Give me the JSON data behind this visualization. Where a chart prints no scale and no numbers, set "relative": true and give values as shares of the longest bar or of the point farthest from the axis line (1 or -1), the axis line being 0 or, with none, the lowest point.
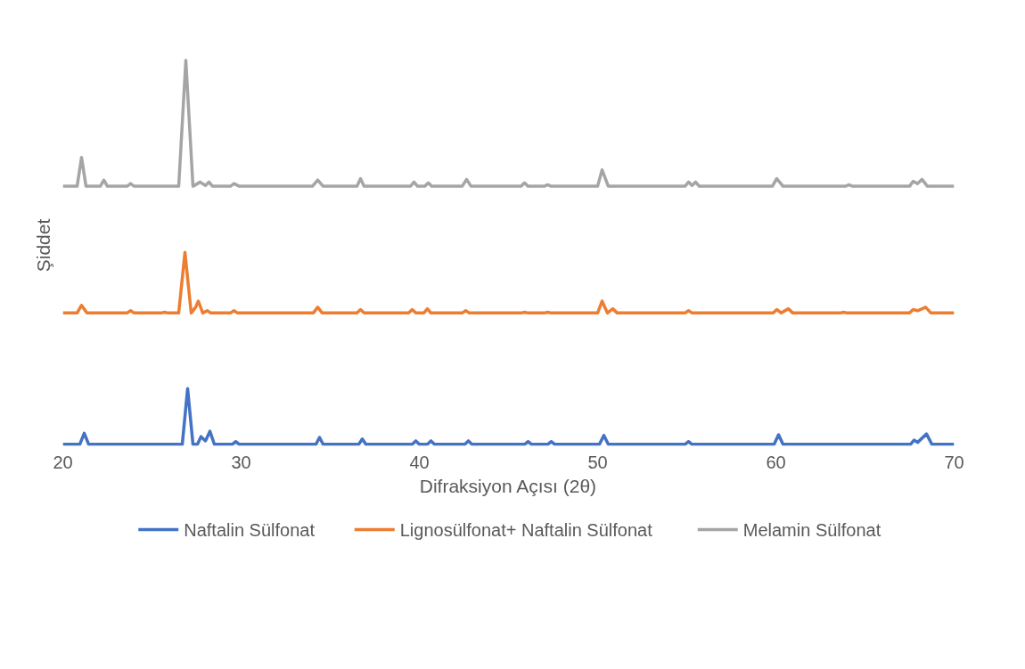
{
  "chart_data": {
    "type": "line",
    "relative": true,
    "xlabel": "Difraksiyon Açısı (2θ)",
    "ylabel": "Şiddet",
    "xlim": [
      20,
      70
    ],
    "xticks": [
      20,
      30,
      40,
      50,
      60,
      70
    ],
    "tick_labels": "x",
    "grid": false,
    "legend": "bottom",
    "marker": "none",
    "line_style": "solid",
    "series": [
      {
        "name": "Naftalin Sülfonat",
        "color": "#4472c4",
        "x": [
          20,
          20.95,
          21.2,
          21.45,
          26.7,
          27.0,
          27.3,
          27.55,
          27.75,
          28.0,
          28.25,
          28.5,
          29.5,
          29.7,
          29.9,
          34.2,
          34.4,
          34.6,
          36.6,
          36.8,
          37.0,
          39.6,
          39.8,
          40.0,
          40.45,
          40.65,
          40.85,
          42.55,
          42.75,
          42.95,
          45.9,
          46.1,
          46.3,
          47.2,
          47.4,
          47.6,
          50.1,
          50.35,
          50.6,
          54.9,
          55.1,
          55.3,
          59.9,
          60.15,
          60.4,
          67.55,
          67.75,
          67.95,
          68.45,
          68.75,
          70
        ],
        "values": [
          0,
          0,
          0.029,
          0,
          0,
          0.145,
          0,
          0,
          0.02,
          0.009,
          0.034,
          0,
          0,
          0.007,
          0,
          0,
          0.018,
          0,
          0,
          0.014,
          0,
          0,
          0.009,
          0,
          0,
          0.009,
          0,
          0,
          0.009,
          0,
          0,
          0.007,
          0,
          0,
          0.007,
          0,
          0,
          0.023,
          0,
          0,
          0.007,
          0,
          0,
          0.025,
          0,
          0,
          0.011,
          0.005,
          0.027,
          0,
          0
        ]
      },
      {
        "name": "Lignosülfonat+ Naftalin Sülfonat",
        "color": "#ed7d31",
        "x": [
          20,
          20.8,
          21.05,
          21.35,
          23.6,
          23.8,
          24.0,
          25.5,
          25.7,
          25.9,
          26.5,
          26.85,
          27.2,
          27.45,
          27.6,
          27.85,
          28.1,
          28.3,
          29.4,
          29.6,
          29.8,
          34.05,
          34.3,
          34.55,
          36.5,
          36.7,
          36.9,
          39.4,
          39.6,
          39.8,
          40.25,
          40.45,
          40.65,
          42.4,
          42.6,
          42.8,
          45.7,
          45.9,
          46.1,
          47.0,
          47.2,
          47.4,
          50.0,
          50.25,
          50.55,
          50.85,
          51.1,
          54.9,
          55.1,
          55.3,
          59.85,
          60.05,
          60.3,
          60.7,
          60.95,
          63.6,
          63.8,
          64.0,
          67.5,
          67.7,
          67.95,
          68.4,
          68.7,
          70
        ],
        "values": [
          0.342,
          0.342,
          0.362,
          0.342,
          0.342,
          0.348,
          0.342,
          0.342,
          0.344,
          0.342,
          0.342,
          0.5,
          0.342,
          0.357,
          0.373,
          0.342,
          0.348,
          0.342,
          0.342,
          0.348,
          0.342,
          0.342,
          0.357,
          0.342,
          0.342,
          0.351,
          0.342,
          0.342,
          0.351,
          0.342,
          0.342,
          0.353,
          0.342,
          0.342,
          0.348,
          0.342,
          0.342,
          0.344,
          0.342,
          0.342,
          0.344,
          0.342,
          0.342,
          0.373,
          0.342,
          0.353,
          0.342,
          0.342,
          0.348,
          0.342,
          0.342,
          0.351,
          0.342,
          0.353,
          0.342,
          0.342,
          0.344,
          0.342,
          0.342,
          0.351,
          0.348,
          0.357,
          0.342,
          0.342
        ]
      },
      {
        "name": "Melamin Sülfonat",
        "color": "#a5a5a5",
        "x": [
          20,
          20.8,
          21.05,
          21.3,
          22.1,
          22.3,
          22.5,
          23.6,
          23.8,
          24.0,
          26.5,
          26.9,
          27.3,
          27.7,
          28.0,
          28.2,
          28.4,
          29.4,
          29.6,
          29.9,
          34.0,
          34.3,
          34.6,
          36.5,
          36.7,
          36.9,
          39.5,
          39.7,
          39.9,
          40.3,
          40.5,
          40.7,
          42.4,
          42.65,
          42.9,
          45.7,
          45.9,
          46.1,
          47.0,
          47.2,
          47.4,
          50.0,
          50.25,
          50.6,
          54.9,
          55.1,
          55.3,
          55.5,
          55.7,
          59.8,
          60.05,
          60.4,
          63.9,
          64.1,
          64.3,
          67.5,
          67.7,
          67.95,
          68.2,
          68.5,
          70
        ],
        "values": [
          0.672,
          0.672,
          0.747,
          0.672,
          0.672,
          0.688,
          0.672,
          0.672,
          0.679,
          0.672,
          0.672,
          1.0,
          0.672,
          0.683,
          0.674,
          0.683,
          0.672,
          0.672,
          0.679,
          0.672,
          0.672,
          0.688,
          0.672,
          0.672,
          0.692,
          0.672,
          0.672,
          0.683,
          0.672,
          0.672,
          0.681,
          0.672,
          0.672,
          0.69,
          0.672,
          0.672,
          0.681,
          0.672,
          0.672,
          0.676,
          0.672,
          0.672,
          0.715,
          0.672,
          0.672,
          0.683,
          0.674,
          0.683,
          0.672,
          0.672,
          0.692,
          0.672,
          0.672,
          0.676,
          0.672,
          0.672,
          0.685,
          0.679,
          0.69,
          0.672,
          0.672
        ]
      }
    ]
  }
}
